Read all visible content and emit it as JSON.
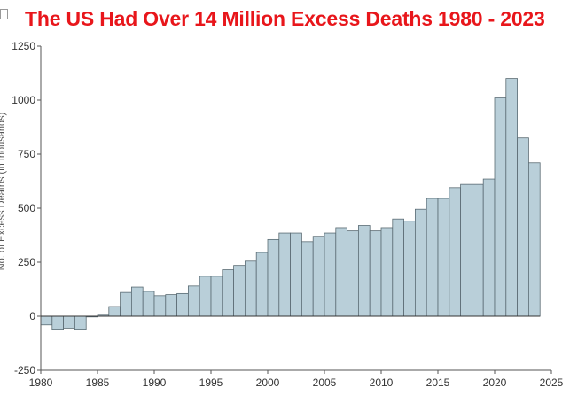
{
  "chart_data": {
    "type": "bar",
    "title": "The US Had Over 14 Million Excess Deaths 1980 - 2023",
    "ylabel": "No. of Excess Deaths (in thousands)",
    "xlabel": "",
    "x_ticks": [
      "1980",
      "1985",
      "1990",
      "1995",
      "2000",
      "2005",
      "2010",
      "2015",
      "2020",
      "2025"
    ],
    "y_ticks": [
      "-250",
      "0",
      "250",
      "500",
      "750",
      "1000",
      "1250"
    ],
    "xlim": [
      1980,
      2025
    ],
    "ylim": [
      -250,
      1250
    ],
    "bar_color": "#b9cfd9",
    "categories": [
      1980,
      1981,
      1982,
      1983,
      1984,
      1985,
      1986,
      1987,
      1988,
      1989,
      1990,
      1991,
      1992,
      1993,
      1994,
      1995,
      1996,
      1997,
      1998,
      1999,
      2000,
      2001,
      2002,
      2003,
      2004,
      2005,
      2006,
      2007,
      2008,
      2009,
      2010,
      2011,
      2012,
      2013,
      2014,
      2015,
      2016,
      2017,
      2018,
      2019,
      2020,
      2021,
      2022,
      2023
    ],
    "values": [
      -40,
      -60,
      -55,
      -60,
      0,
      5,
      45,
      110,
      135,
      115,
      95,
      100,
      105,
      140,
      185,
      185,
      215,
      235,
      255,
      295,
      355,
      385,
      385,
      345,
      370,
      385,
      410,
      395,
      420,
      395,
      410,
      450,
      440,
      495,
      545,
      545,
      595,
      610,
      610,
      635,
      1010,
      1100,
      825,
      710
    ]
  }
}
